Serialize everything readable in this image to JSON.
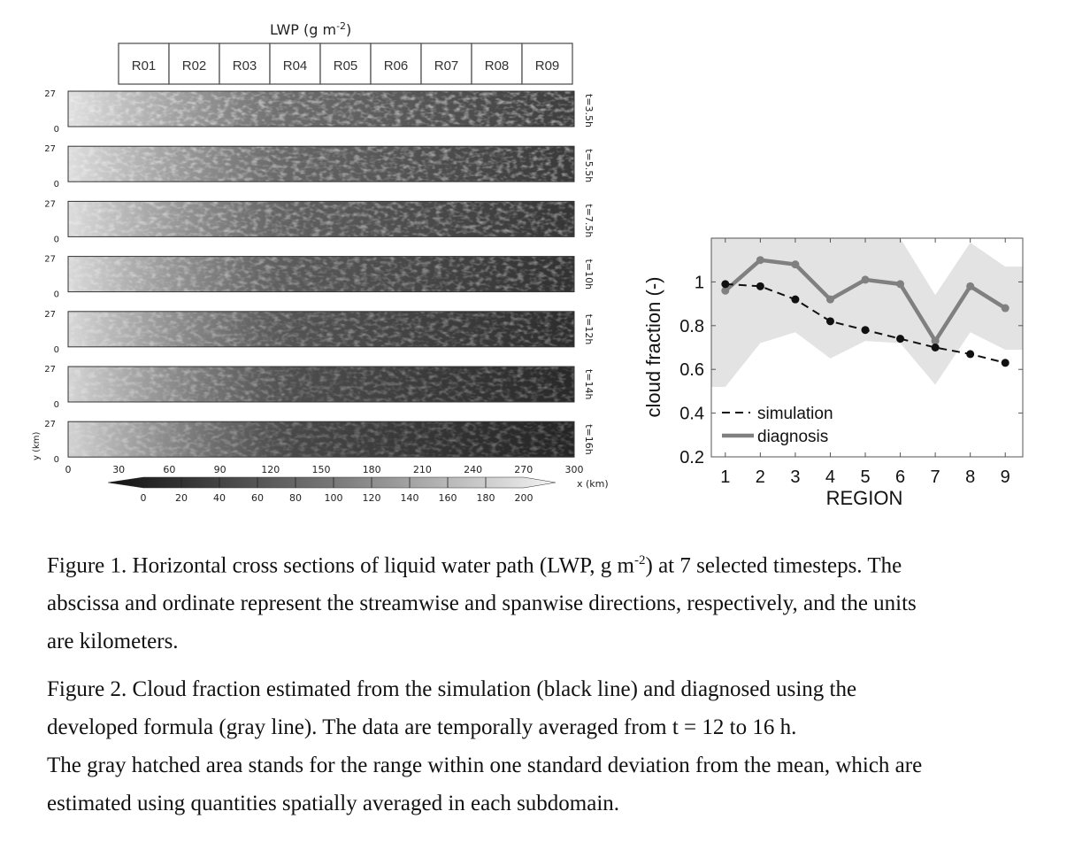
{
  "figure1": {
    "title_prefix": "LWP (g m",
    "title_exp": "-2",
    "title_suffix": ")",
    "regions": [
      "R01",
      "R02",
      "R03",
      "R04",
      "R05",
      "R06",
      "R07",
      "R08",
      "R09"
    ],
    "timesteps": [
      "t=3.5h",
      "t=5.5h",
      "t=7.5h",
      "t=10h",
      "t=12h",
      "t=14h",
      "t=16h"
    ],
    "y_tick_top": "27",
    "y_tick_bottom": "0",
    "y_label": "y (km)",
    "x_ticks": [
      "0",
      "30",
      "60",
      "90",
      "120",
      "150",
      "180",
      "210",
      "240",
      "270",
      "300"
    ],
    "x_label": "x (km)",
    "colorbar_ticks": [
      "0",
      "20",
      "40",
      "60",
      "80",
      "100",
      "120",
      "140",
      "160",
      "180",
      "200"
    ]
  },
  "chart_data": {
    "type": "line",
    "x": [
      1,
      2,
      3,
      4,
      5,
      6,
      7,
      8,
      9
    ],
    "xlabel": "REGION",
    "ylabel": "cloud fraction (-)",
    "ylim": [
      0.2,
      1.2
    ],
    "xlim": [
      0.6,
      9.5
    ],
    "y_ticks": [
      "0.2",
      "0.4",
      "0.6",
      "0.8",
      "1"
    ],
    "x_ticks": [
      "1",
      "2",
      "3",
      "4",
      "5",
      "6",
      "7",
      "8",
      "9"
    ],
    "grid": false,
    "legend_position": "bottom-left",
    "series": [
      {
        "name": "simulation",
        "style": "dashed-black-with-dots",
        "color": "#111111",
        "values": [
          0.99,
          0.98,
          0.92,
          0.82,
          0.78,
          0.74,
          0.7,
          0.67,
          0.63
        ]
      },
      {
        "name": "diagnosis",
        "style": "solid-gray",
        "color": "#808080",
        "values": [
          0.96,
          1.1,
          1.08,
          0.92,
          1.01,
          0.99,
          0.73,
          0.98,
          0.88
        ]
      }
    ],
    "band": {
      "color": "#e3e3e3",
      "upper": [
        1.25,
        1.25,
        1.25,
        1.25,
        1.25,
        1.25,
        0.94,
        1.18,
        1.07
      ],
      "lower": [
        0.52,
        0.72,
        0.77,
        0.65,
        0.73,
        0.72,
        0.53,
        0.77,
        0.69
      ]
    }
  },
  "captions": {
    "fig1_line1_a": "Figure 1. Horizontal cross sections of liquid water path (LWP, g m",
    "fig1_line1_sup": "-2",
    "fig1_line1_b": ") at 7 selected timesteps. The",
    "fig1_line2": "abscissa and ordinate represent the streamwise and spanwise directions, respectively, and the units",
    "fig1_line3": "are kilometers.",
    "fig2_line1": "Figure 2. Cloud fraction estimated from the simulation (black line) and diagnosed using the",
    "fig2_line2": "developed formula (gray line). The data are temporally averaged from t = 12 to 16 h.",
    "fig2_line3": "The gray hatched area stands for the range within one standard deviation from the mean, which are",
    "fig2_line4": "estimated using quantities spatially averaged in each subdomain."
  }
}
